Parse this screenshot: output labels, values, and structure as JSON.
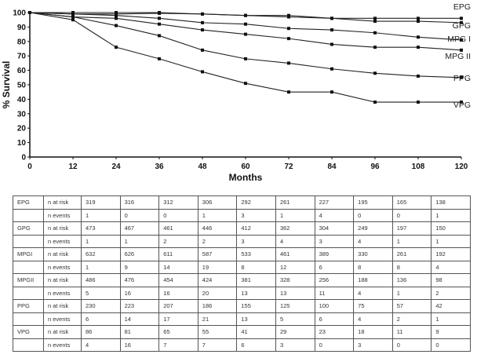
{
  "chart_data": {
    "type": "line",
    "xlabel": "Months",
    "ylabel": "% Survival",
    "x": [
      0,
      12,
      24,
      36,
      48,
      60,
      72,
      84,
      96,
      108,
      120
    ],
    "xlim": [
      0,
      120
    ],
    "ylim": [
      0,
      100
    ],
    "xticks": [
      "0",
      "12",
      "24",
      "36",
      "48",
      "60",
      "72",
      "84",
      "96",
      "108",
      "120"
    ],
    "yticks": [
      "0",
      "10",
      "20",
      "30",
      "40",
      "50",
      "60",
      "70",
      "80",
      "90",
      "100"
    ],
    "grid": false,
    "series": [
      {
        "name": "EPG",
        "values": [
          100,
          100,
          100,
          100,
          99,
          98,
          97,
          96,
          96,
          96,
          96
        ]
      },
      {
        "name": "GPG",
        "values": [
          100,
          99,
          99,
          99.5,
          99,
          98,
          98,
          96,
          94,
          94,
          93
        ]
      },
      {
        "name": "MPG I",
        "values": [
          100,
          99,
          98,
          96,
          93,
          92,
          89,
          88,
          86,
          83,
          81
        ]
      },
      {
        "name": "MPG II",
        "values": [
          100,
          97,
          96,
          92,
          88,
          85,
          82,
          78,
          76,
          76,
          74
        ]
      },
      {
        "name": "PPG",
        "values": [
          100,
          97,
          91,
          84,
          74,
          68,
          65,
          61,
          58,
          56,
          55
        ]
      },
      {
        "name": "VPG",
        "values": [
          100,
          95,
          76,
          68,
          59,
          51,
          45,
          45,
          38,
          38,
          38
        ]
      }
    ]
  },
  "table": [
    {
      "group": "EPG",
      "risk_label": "n at risk",
      "risk": [
        "319",
        "316",
        "312",
        "306",
        "292",
        "261",
        "227",
        "195",
        "165",
        "138"
      ],
      "events_label": "n events",
      "events": [
        "1",
        "0",
        "0",
        "1",
        "3",
        "1",
        "4",
        "0",
        "0",
        "1"
      ]
    },
    {
      "group": "GPG",
      "risk_label": "n at risk",
      "risk": [
        "473",
        "467",
        "461",
        "446",
        "412",
        "362",
        "304",
        "249",
        "197",
        "150"
      ],
      "events_label": "n events",
      "events": [
        "1",
        "1",
        "2",
        "2",
        "3",
        "4",
        "3",
        "4",
        "1",
        "1"
      ]
    },
    {
      "group": "MPGI",
      "risk_label": "n at risk",
      "risk": [
        "632",
        "626",
        "611",
        "587",
        "533",
        "461",
        "389",
        "330",
        "261",
        "192"
      ],
      "events_label": "n events",
      "events": [
        "1",
        "9",
        "14",
        "19",
        "8",
        "12",
        "6",
        "8",
        "8",
        "4"
      ]
    },
    {
      "group": "MPGII",
      "risk_label": "n at risk",
      "risk": [
        "486",
        "476",
        "454",
        "424",
        "381",
        "328",
        "256",
        "188",
        "136",
        "98"
      ],
      "events_label": "n events",
      "events": [
        "5",
        "16",
        "16",
        "20",
        "13",
        "13",
        "11",
        "4",
        "1",
        "2"
      ]
    },
    {
      "group": "PPG",
      "risk_label": "n at risk",
      "risk": [
        "230",
        "223",
        "207",
        "186",
        "155",
        "125",
        "100",
        "75",
        "57",
        "42"
      ],
      "events_label": "n events",
      "events": [
        "6",
        "14",
        "17",
        "21",
        "13",
        "5",
        "6",
        "4",
        "2",
        "1"
      ]
    },
    {
      "group": "VPG",
      "risk_label": "n at risk",
      "risk": [
        "86",
        "81",
        "65",
        "55",
        "41",
        "29",
        "23",
        "18",
        "11",
        "9"
      ],
      "events_label": "n events",
      "events": [
        "4",
        "16",
        "7",
        "7",
        "6",
        "3",
        "0",
        "3",
        "0",
        "0"
      ]
    }
  ]
}
